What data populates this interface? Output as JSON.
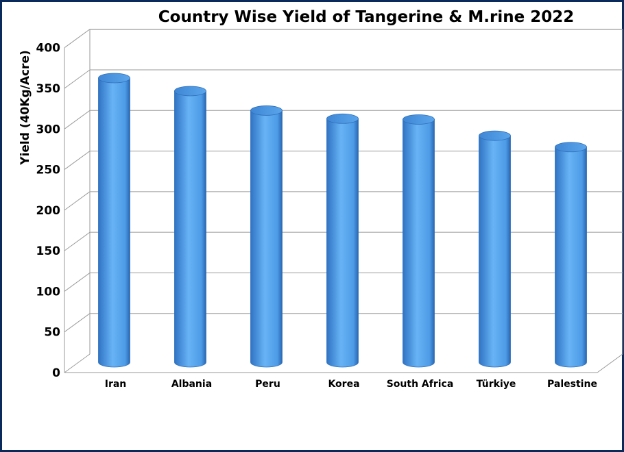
{
  "chart_data": {
    "type": "bar",
    "title": "Country Wise Yield of Tangerine & M.rine 2022",
    "xlabel": "",
    "ylabel": "Yield (40Kg/Acre)",
    "categories": [
      "Iran",
      "Albania",
      "Peru",
      "Korea",
      "South Africa",
      "Türkiye",
      "Palestine"
    ],
    "values": [
      350,
      334,
      310,
      300,
      299,
      279,
      265
    ],
    "ylim": [
      0,
      400
    ],
    "yticks": [
      "0",
      "50",
      "100",
      "150",
      "200",
      "250",
      "300",
      "350",
      "400"
    ],
    "grid": true,
    "legend": "none",
    "bar_color": "#5aaaf0",
    "bar_edge_color": "#2f6fb8",
    "bar_shape": "3d-cylinder"
  }
}
